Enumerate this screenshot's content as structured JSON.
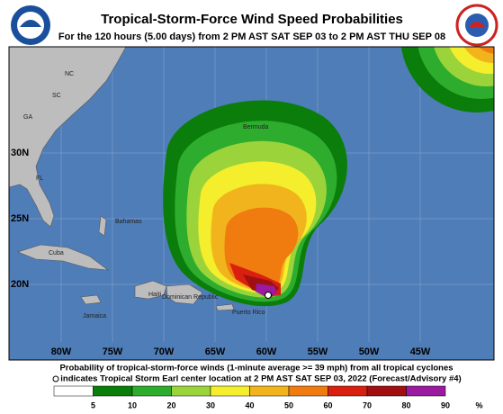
{
  "header": {
    "title": "Tropical-Storm-Force Wind Speed Probabilities",
    "subtitle": "For the 120 hours (5.00 days) from 2 PM AST SAT SEP 03 to 2 PM AST THU SEP 08"
  },
  "map": {
    "lat_labels": [
      "30N",
      "25N",
      "20N"
    ],
    "lon_labels": [
      "80W",
      "75W",
      "70W",
      "65W",
      "60W",
      "55W",
      "50W",
      "45W"
    ],
    "places": [
      "NC",
      "SC",
      "GA",
      "FL",
      "Bermuda",
      "Bahamas",
      "Cuba",
      "Haiti",
      "Dominican Republic",
      "Jamaica",
      "Puerto Rico"
    ]
  },
  "footer": {
    "line1": "Probability of tropical-storm-force winds (1-minute average >= 39 mph) from all tropical cyclones",
    "line2": "indicates Tropical Storm Earl center location at 2 PM AST SAT SEP 03, 2022 (Forecast/Advisory #4)"
  },
  "legend": {
    "labels": [
      "5",
      "10",
      "20",
      "30",
      "40",
      "50",
      "60",
      "70",
      "80",
      "90",
      "%"
    ]
  }
}
